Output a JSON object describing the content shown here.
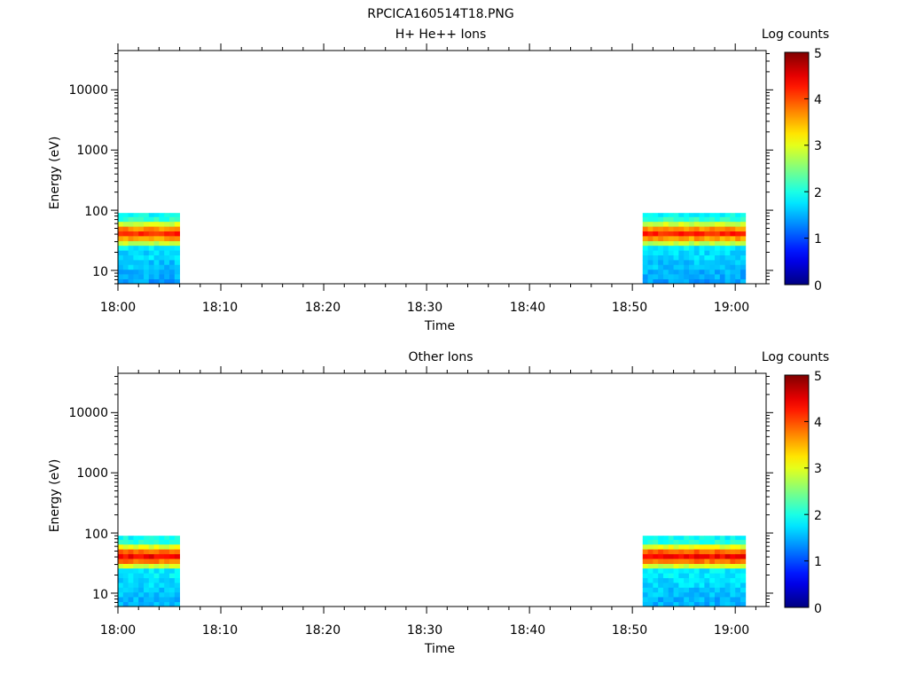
{
  "figure_title": "RPCICA160514T18.PNG",
  "chart_data": [
    {
      "type": "heatmap",
      "title": "H+ He++ Ions",
      "xlabel": "Time",
      "ylabel": "Energy (eV)",
      "x_ticks": [
        "18:00",
        "18:10",
        "18:20",
        "18:30",
        "18:40",
        "18:50",
        "19:00"
      ],
      "x_range": [
        "18:00",
        "19:03"
      ],
      "y_scale": "log",
      "y_ticks": [
        "10",
        "100",
        "1000",
        "10000"
      ],
      "y_range": [
        6,
        45000
      ],
      "colorbar": {
        "label": "Log counts",
        "range": [
          0,
          5
        ],
        "ticks": [
          "0",
          "1",
          "2",
          "3",
          "4",
          "5"
        ]
      },
      "data_blocks": [
        {
          "time_start": "18:00",
          "time_end": "18:06"
        },
        {
          "time_start": "18:51",
          "time_end": "19:01"
        }
      ],
      "energy_bins_eV": [
        6,
        7.2,
        8.7,
        10.4,
        12.5,
        15,
        18,
        21.6,
        26,
        31,
        37.5,
        45,
        54,
        65,
        78,
        90
      ],
      "log_counts_profile": [
        1.4,
        1.5,
        1.5,
        1.6,
        1.6,
        1.7,
        1.7,
        1.8,
        2.8,
        3.6,
        4.2,
        3.7,
        2.9,
        2.1,
        1.9
      ]
    },
    {
      "type": "heatmap",
      "title": "Other Ions",
      "xlabel": "Time",
      "ylabel": "Energy (eV)",
      "x_ticks": [
        "18:00",
        "18:10",
        "18:20",
        "18:30",
        "18:40",
        "18:50",
        "19:00"
      ],
      "x_range": [
        "18:00",
        "19:03"
      ],
      "y_scale": "log",
      "y_ticks": [
        "10",
        "100",
        "1000",
        "10000"
      ],
      "y_range": [
        6,
        45000
      ],
      "colorbar": {
        "label": "Log counts",
        "range": [
          0,
          5
        ],
        "ticks": [
          "0",
          "1",
          "2",
          "3",
          "4",
          "5"
        ]
      },
      "data_blocks": [
        {
          "time_start": "18:00",
          "time_end": "18:06"
        },
        {
          "time_start": "18:51",
          "time_end": "19:01"
        }
      ],
      "energy_bins_eV": [
        6,
        7.2,
        8.7,
        10.4,
        12.5,
        15,
        18,
        21.6,
        26,
        31,
        37.5,
        45,
        54,
        65,
        78,
        90
      ],
      "log_counts_profile": [
        1.5,
        1.5,
        1.6,
        1.6,
        1.7,
        1.7,
        1.8,
        1.8,
        2.9,
        3.8,
        4.4,
        3.9,
        3.0,
        2.0,
        1.9
      ]
    }
  ]
}
